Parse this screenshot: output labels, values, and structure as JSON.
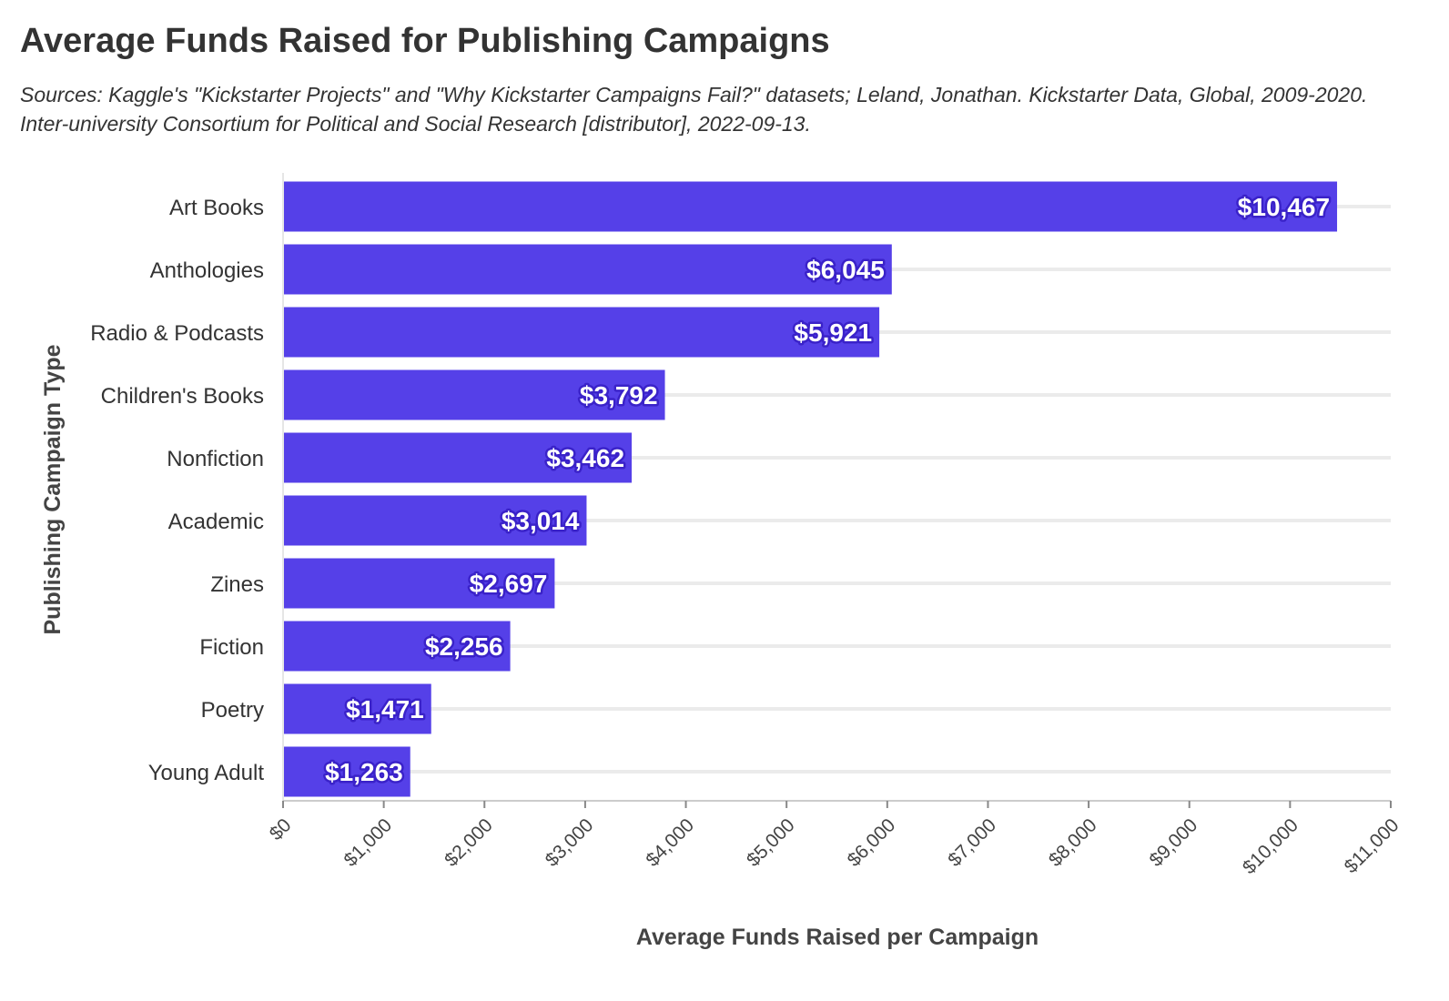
{
  "header": {
    "title": "Average Funds Raised for Publishing Campaigns",
    "subtitle": "Sources: Kaggle's \"Kickstarter Projects\" and \"Why Kickstarter Campaigns Fail?\" datasets; Leland, Jonathan. Kickstarter Data, Global, 2009-2020. Inter-university Consortium for Political and Social Research [distributor], 2022-09-13."
  },
  "colors": {
    "bar": "#5540e8",
    "gridline": "#ebebeb",
    "axis": "#cccccc"
  },
  "chart_data": {
    "type": "bar",
    "orientation": "horizontal",
    "title": "Average Funds Raised for Publishing Campaigns",
    "xlabel": "Average Funds Raised per Campaign",
    "ylabel": "Publishing Campaign Type",
    "xlim": [
      0,
      11000
    ],
    "x_ticks": [
      0,
      1000,
      2000,
      3000,
      4000,
      5000,
      6000,
      7000,
      8000,
      9000,
      10000,
      11000
    ],
    "x_tick_labels": [
      "$0",
      "$1,000",
      "$2,000",
      "$3,000",
      "$4,000",
      "$5,000",
      "$6,000",
      "$7,000",
      "$8,000",
      "$9,000",
      "$10,000",
      "$11,000"
    ],
    "grid": true,
    "categories": [
      "Art Books",
      "Anthologies",
      "Radio & Podcasts",
      "Children's Books",
      "Nonfiction",
      "Academic",
      "Zines",
      "Fiction",
      "Poetry",
      "Young Adult"
    ],
    "values": [
      10467,
      6045,
      5921,
      3792,
      3462,
      3014,
      2697,
      2256,
      1471,
      1263
    ],
    "data_labels": [
      "$10,467",
      "$6,045",
      "$5,921",
      "$3,792",
      "$3,462",
      "$3,014",
      "$2,697",
      "$2,256",
      "$1,471",
      "$1,263"
    ]
  }
}
